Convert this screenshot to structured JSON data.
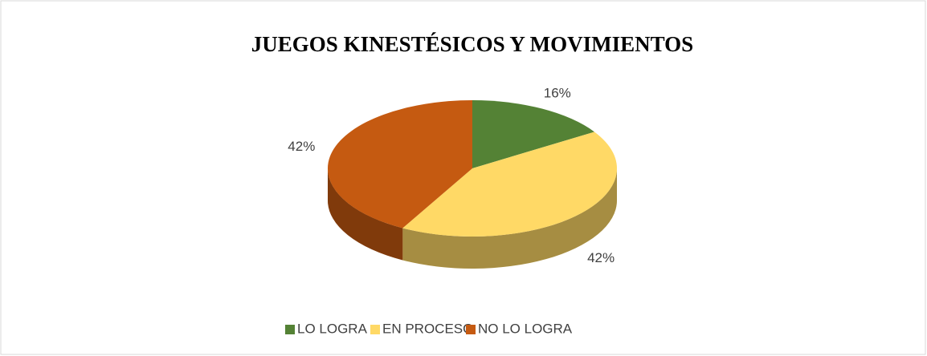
{
  "chart_data": {
    "type": "pie",
    "title": "JUEGOS KINESTÉSICOS Y MOVIMIENTOS",
    "categories": [
      "LO LOGRA",
      "EN PROCESO",
      "NO LO LOGRA"
    ],
    "values": [
      16,
      42,
      42
    ],
    "value_labels": [
      "16%",
      "42%",
      "42%"
    ],
    "colors": [
      "#548235",
      "#FFD966",
      "#C55A11"
    ],
    "legend": "bottom"
  }
}
